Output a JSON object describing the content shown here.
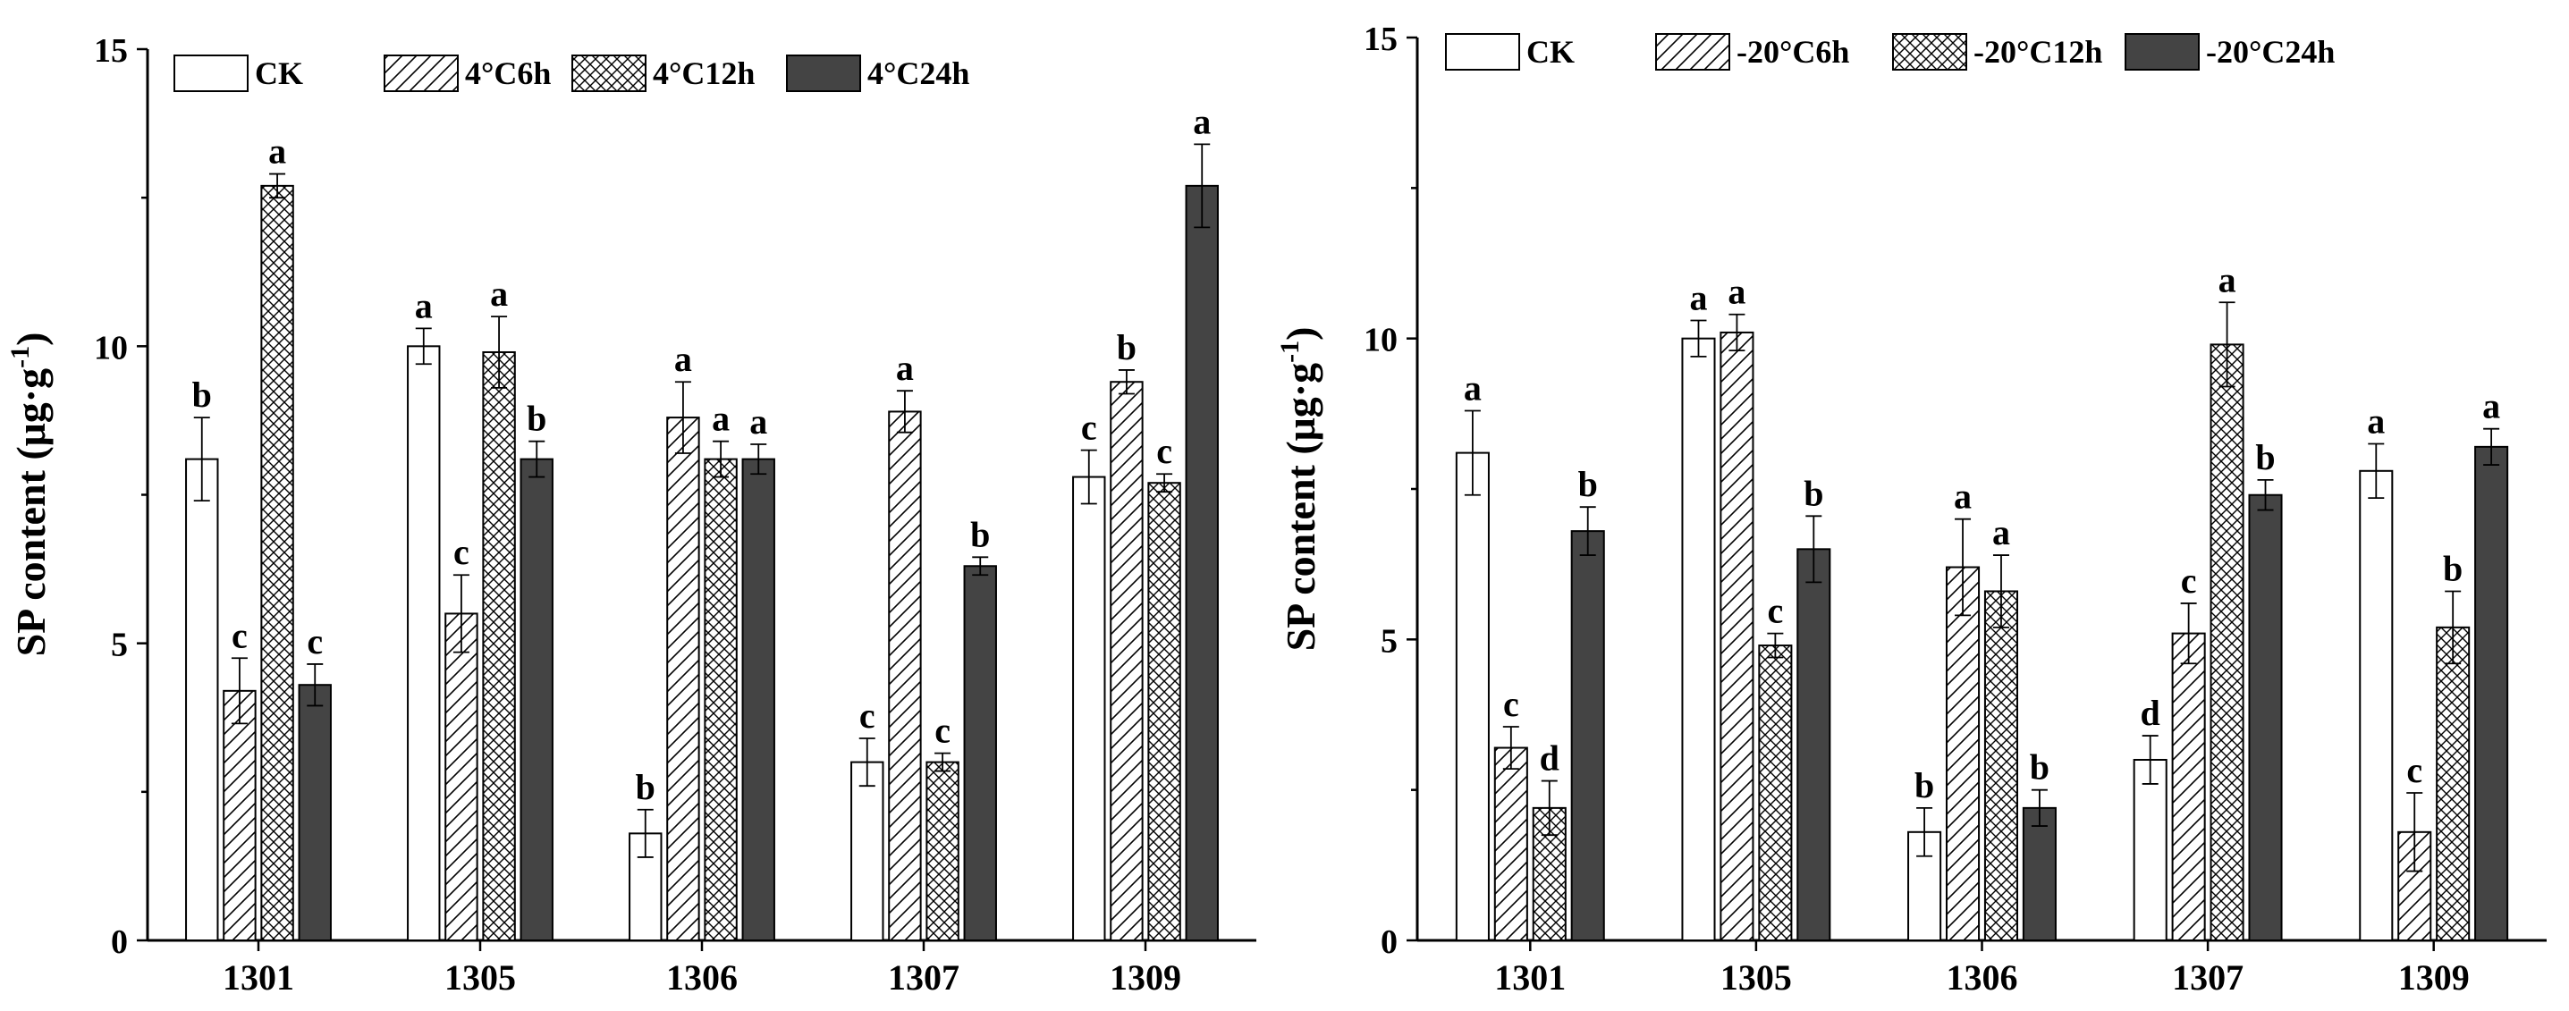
{
  "colors": {
    "ck": "#ffffff",
    "dark": "#444444",
    "stroke": "#000000"
  },
  "chart_data": [
    {
      "type": "bar",
      "id": "left",
      "ylabel": "SP content (μg·g⁻¹)",
      "ylabel_main": "SP content (μg·g",
      "ylabel_sup": "-1",
      "ylabel_close": ")",
      "ylim": [
        0,
        15
      ],
      "yticks": [
        "0",
        "5",
        "10",
        "15"
      ],
      "categories": [
        "1301",
        "1305",
        "1306",
        "1307",
        "1309"
      ],
      "legend_position": "top-left",
      "series": [
        {
          "name": "CK",
          "pattern": "none",
          "values": [
            8.1,
            10.0,
            1.8,
            3.0,
            7.8
          ],
          "errors": [
            0.7,
            0.3,
            0.4,
            0.4,
            0.45
          ],
          "letters": [
            "b",
            "a",
            "b",
            "c",
            "c"
          ]
        },
        {
          "name": "4°C6h",
          "pattern": "hatch",
          "values": [
            4.2,
            5.5,
            8.8,
            8.9,
            9.4
          ],
          "errors": [
            0.55,
            0.65,
            0.6,
            0.35,
            0.2
          ],
          "letters": [
            "c",
            "c",
            "a",
            "a",
            "b"
          ]
        },
        {
          "name": "4°C12h",
          "pattern": "cross",
          "values": [
            12.7,
            9.9,
            8.1,
            3.0,
            7.7
          ],
          "errors": [
            0.2,
            0.6,
            0.3,
            0.15,
            0.15
          ],
          "letters": [
            "a",
            "a",
            "a",
            "c",
            "c"
          ]
        },
        {
          "name": "4°C24h",
          "pattern": "solid",
          "values": [
            4.3,
            8.1,
            8.1,
            6.3,
            12.7
          ],
          "errors": [
            0.35,
            0.3,
            0.25,
            0.15,
            0.7
          ],
          "letters": [
            "c",
            "b",
            "a",
            "b",
            "a"
          ]
        }
      ]
    },
    {
      "type": "bar",
      "id": "right",
      "ylabel": "SP content (μg·g⁻¹)",
      "ylabel_main": "SP content (μg·g",
      "ylabel_sup": "-1",
      "ylabel_close": ")",
      "ylim": [
        0,
        15
      ],
      "yticks": [
        "0",
        "5",
        "10",
        "15"
      ],
      "categories": [
        "1301",
        "1305",
        "1306",
        "1307",
        "1309"
      ],
      "legend_position": "top-left",
      "series": [
        {
          "name": "CK",
          "pattern": "none",
          "values": [
            8.1,
            10.0,
            1.8,
            3.0,
            7.8
          ],
          "errors": [
            0.7,
            0.3,
            0.4,
            0.4,
            0.45
          ],
          "letters": [
            "a",
            "a",
            "b",
            "d",
            "a"
          ]
        },
        {
          "name": "-20°C6h",
          "pattern": "hatch",
          "values": [
            3.2,
            10.1,
            6.2,
            5.1,
            1.8
          ],
          "errors": [
            0.35,
            0.3,
            0.8,
            0.5,
            0.65
          ],
          "letters": [
            "c",
            "a",
            "a",
            "c",
            "c"
          ]
        },
        {
          "name": "-20°C12h",
          "pattern": "cross",
          "values": [
            2.2,
            4.9,
            5.8,
            9.9,
            5.2
          ],
          "errors": [
            0.45,
            0.2,
            0.6,
            0.7,
            0.6
          ],
          "letters": [
            "d",
            "c",
            "a",
            "a",
            "b"
          ]
        },
        {
          "name": "-20°C24h",
          "pattern": "solid",
          "values": [
            6.8,
            6.5,
            2.2,
            7.4,
            8.2
          ],
          "errors": [
            0.4,
            0.55,
            0.3,
            0.25,
            0.3
          ],
          "letters": [
            "b",
            "b",
            "b",
            "b",
            "a"
          ]
        }
      ]
    }
  ]
}
